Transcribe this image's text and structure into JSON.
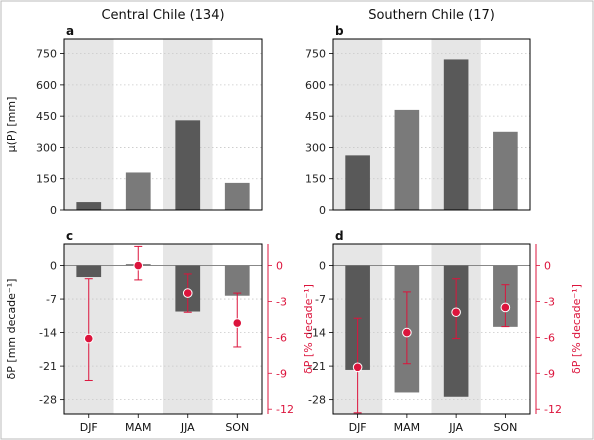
{
  "chart_data": [
    {
      "panel": "a",
      "type": "bar",
      "title": "Central Chile (134)",
      "ylabel": "μ(P) [mm]",
      "categories": [
        "DJF",
        "MAM",
        "JJA",
        "SON"
      ],
      "values": [
        38,
        180,
        430,
        130
      ],
      "ylim": [
        0,
        820
      ],
      "yticks": [
        0,
        150,
        300,
        450,
        600,
        750
      ],
      "shaded_seasons": [
        "DJF",
        "JJA"
      ]
    },
    {
      "panel": "b",
      "type": "bar",
      "title": "Southern Chile (17)",
      "categories": [
        "DJF",
        "MAM",
        "JJA",
        "SON"
      ],
      "values": [
        262,
        480,
        722,
        375
      ],
      "ylim": [
        0,
        820
      ],
      "yticks": [
        0,
        150,
        300,
        450,
        600,
        750
      ],
      "shaded_seasons": [
        "DJF",
        "JJA"
      ]
    },
    {
      "panel": "c",
      "type": "bar",
      "ylabel": "δP [mm decade⁻¹]",
      "y2label": "δP [% decade⁻¹]",
      "categories": [
        "DJF",
        "MAM",
        "JJA",
        "SON"
      ],
      "values": [
        -2.4,
        0.3,
        -9.6,
        -6.3
      ],
      "ylim": [
        -31,
        4.5
      ],
      "yticks": [
        0,
        -7,
        -14,
        -21,
        -28
      ],
      "relative_trend": {
        "values": [
          -6.1,
          0.0,
          -2.3,
          -4.8
        ],
        "lower": [
          -9.6,
          -1.2,
          -3.9,
          -6.8
        ],
        "upper": [
          -1.1,
          1.6,
          -0.7,
          -2.3
        ],
        "y2lim": [
          -12.4,
          1.8
        ],
        "y2ticks": [
          0,
          -3,
          -6,
          -9,
          -12
        ]
      },
      "shaded_seasons": [
        "DJF",
        "JJA"
      ]
    },
    {
      "panel": "d",
      "type": "bar",
      "y2label": "δP [% decade⁻¹]",
      "categories": [
        "DJF",
        "MAM",
        "JJA",
        "SON"
      ],
      "values": [
        -21.8,
        -26.5,
        -27.4,
        -12.8
      ],
      "ylim": [
        -31,
        4.5
      ],
      "yticks": [
        0,
        -7,
        -14,
        -21,
        -28
      ],
      "relative_trend": {
        "values": [
          -8.5,
          -5.6,
          -3.9,
          -3.5
        ],
        "lower": [
          -12.3,
          -8.2,
          -6.1,
          -5.1
        ],
        "upper": [
          -4.4,
          -2.2,
          -1.1,
          -1.6
        ],
        "y2lim": [
          -12.4,
          1.8
        ],
        "y2ticks": [
          0,
          -3,
          -6,
          -9,
          -12
        ]
      },
      "shaded_seasons": [
        "DJF",
        "JJA"
      ]
    }
  ],
  "colors": {
    "bar_dark": "#595959",
    "bar_light": "#7a7a7a",
    "shade": "#e6e6e6",
    "trend": "#dc143c",
    "zero_line": "#888888",
    "grid": "#c8c8c8"
  }
}
